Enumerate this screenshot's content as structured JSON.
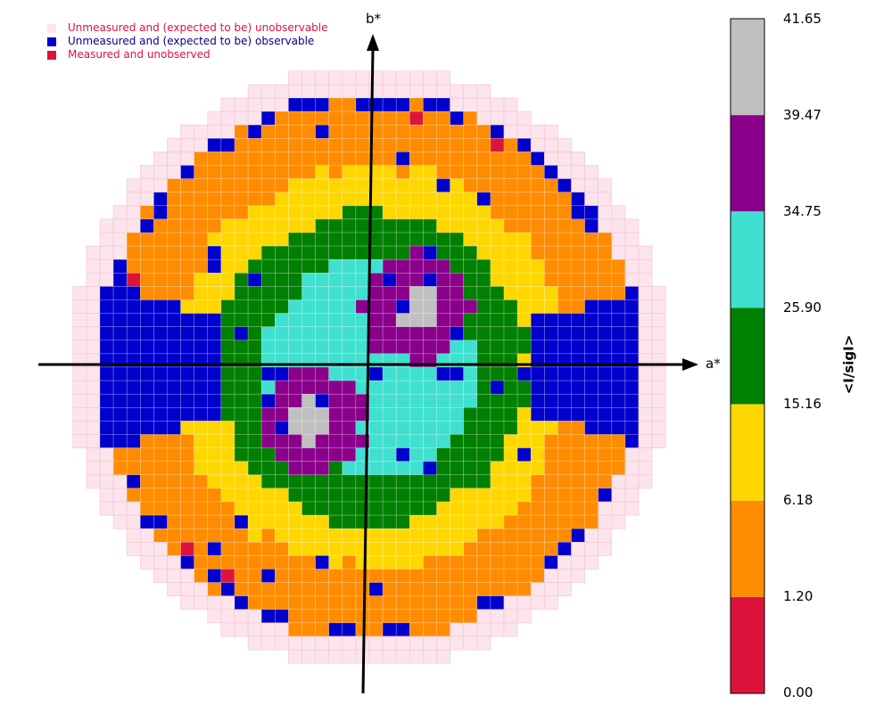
{
  "chart_data": {
    "type": "heatmap",
    "title": "",
    "xlabel": "a*",
    "ylabel": "b*",
    "colorbar": {
      "title": "<I/sigI>",
      "ticks": [
        "41.65",
        "39.47",
        "34.75",
        "25.90",
        "15.16",
        "6.18",
        "1.20",
        "0.00"
      ],
      "bands": [
        {
          "from": 0.0,
          "to": 1.2,
          "color": "#dc143c"
        },
        {
          "from": 1.2,
          "to": 6.18,
          "color": "#ff8c00"
        },
        {
          "from": 6.18,
          "to": 15.16,
          "color": "#ffd700"
        },
        {
          "from": 15.16,
          "to": 25.9,
          "color": "#008000"
        },
        {
          "from": 25.9,
          "to": 34.75,
          "color": "#40e0d0"
        },
        {
          "from": 34.75,
          "to": 39.47,
          "color": "#8b008b"
        },
        {
          "from": 39.47,
          "to": 41.65,
          "color": "#c0c0c0"
        }
      ]
    },
    "legend": {
      "placement": "top-left",
      "entries": [
        {
          "label": "Unmeasured and (expected to be) unobservable",
          "color": "#fce4ec",
          "text_color": "#dc143c"
        },
        {
          "label": "Unmeasured and (expected to be) observable",
          "color": "#0000cd",
          "text_color": "#00008b"
        },
        {
          "label": "Measured and unobserved",
          "color": "#dc143c",
          "text_color": "#dc143c"
        }
      ]
    },
    "grid_resolution": 44
  }
}
